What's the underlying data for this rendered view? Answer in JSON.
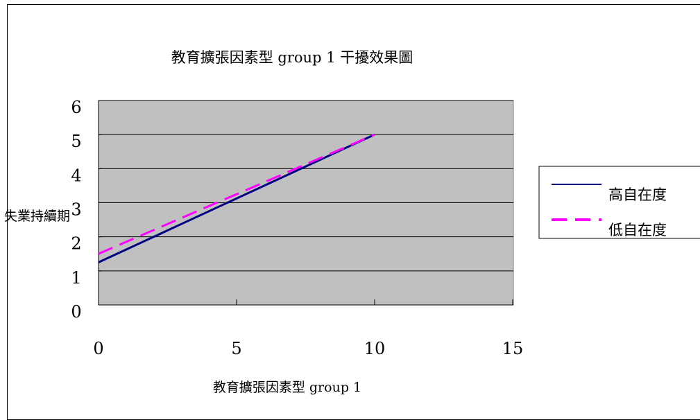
{
  "chart_data": {
    "type": "line",
    "title": "教育擴張因素型 group 1 干擾效果圖",
    "xlabel": "教育擴張因素型 group 1",
    "ylabel": "失業持續期",
    "xlim": [
      0,
      15
    ],
    "ylim": [
      0,
      6
    ],
    "x_ticks": [
      "0",
      "5",
      "10",
      "15"
    ],
    "y_ticks": [
      "0",
      "1",
      "2",
      "3",
      "4",
      "5",
      "6"
    ],
    "grid": true,
    "legend_position": "right",
    "plot_background": "#c0c0c0",
    "series": [
      {
        "name": "高自在度",
        "x": [
          0,
          10
        ],
        "y": [
          1.25,
          5.0
        ],
        "color": "#000080",
        "style": "solid"
      },
      {
        "name": "低自在度",
        "x": [
          0,
          10
        ],
        "y": [
          1.5,
          5.0
        ],
        "color": "#ff00ff",
        "style": "dashed"
      }
    ]
  }
}
